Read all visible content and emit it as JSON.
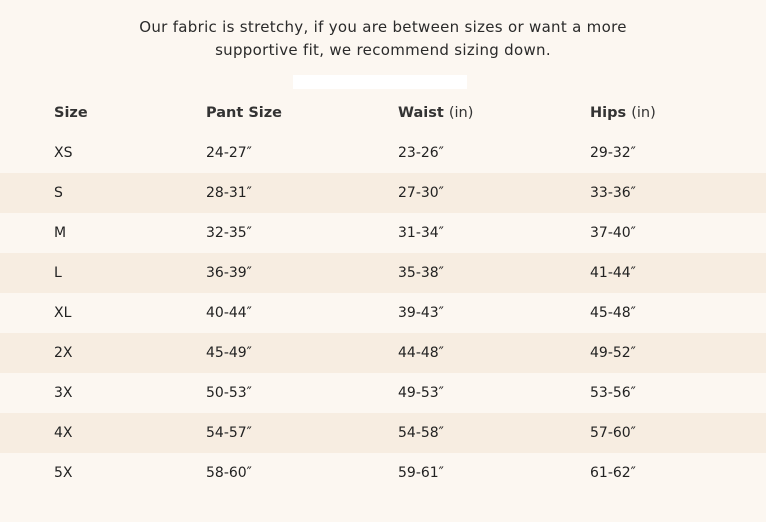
{
  "note": {
    "line1": "Our fabric is stretchy, if you are between sizes or want a more",
    "line2": "supportive fit, we recommend sizing down."
  },
  "table": {
    "headers": [
      {
        "label": "Size",
        "unit": ""
      },
      {
        "label": "Pant Size",
        "unit": ""
      },
      {
        "label": "Waist",
        "unit": "(in)"
      },
      {
        "label": "Hips",
        "unit": "(in)"
      }
    ],
    "rows": [
      [
        "XS",
        "24-27″",
        "23-26″",
        "29-32″"
      ],
      [
        "S",
        "28-31″",
        "27-30″",
        "33-36″"
      ],
      [
        "M",
        "32-35″",
        "31-34″",
        "37-40″"
      ],
      [
        "L",
        "36-39″",
        "35-38″",
        "41-44″"
      ],
      [
        "XL",
        "40-44″",
        "39-43″",
        "45-48″"
      ],
      [
        "2X",
        "45-49″",
        "44-48″",
        "49-52″"
      ],
      [
        "3X",
        "50-53″",
        "49-53″",
        "53-56″"
      ],
      [
        "4X",
        "54-57″",
        "54-58″",
        "57-60″"
      ],
      [
        "5X",
        "58-60″",
        "59-61″",
        "61-62″"
      ]
    ]
  },
  "colors": {
    "background": "#fcf7f1",
    "stripe": "#f7ede1"
  }
}
